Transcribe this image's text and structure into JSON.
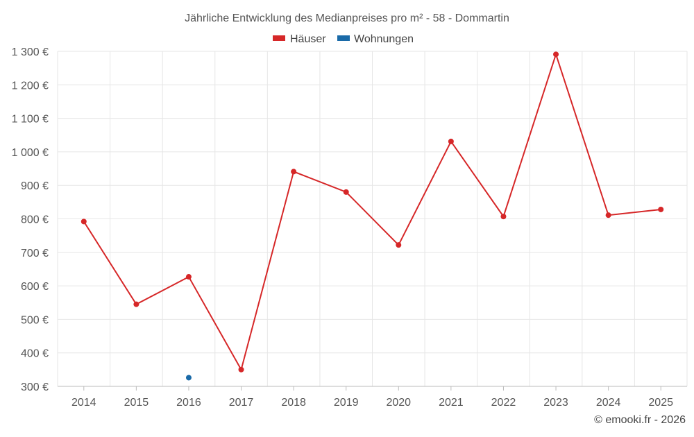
{
  "chart_data": {
    "type": "line",
    "title": "Jährliche Entwicklung des Medianpreises pro m² - 58 - Dommartin",
    "categories": [
      "2014",
      "2015",
      "2016",
      "2017",
      "2018",
      "2019",
      "2020",
      "2021",
      "2022",
      "2023",
      "2024",
      "2025"
    ],
    "series": [
      {
        "name": "Häuser",
        "color": "#d62728",
        "values": [
          792,
          545,
          627,
          350,
          941,
          880,
          722,
          1031,
          807,
          1291,
          811,
          828
        ]
      },
      {
        "name": "Wohnungen",
        "color": "#1a6aa8",
        "values": [
          null,
          null,
          326,
          null,
          null,
          null,
          null,
          null,
          null,
          null,
          null,
          null
        ]
      }
    ],
    "yticks": [
      300,
      400,
      500,
      600,
      700,
      800,
      900,
      1000,
      1100,
      1200,
      1300
    ],
    "ytick_labels": [
      "300 €",
      "400 €",
      "500 €",
      "600 €",
      "700 €",
      "800 €",
      "900 €",
      "1 000 €",
      "1 100 €",
      "1 200 €",
      "1 300 €"
    ],
    "ylim": [
      300,
      1300
    ],
    "xlabel": "",
    "ylabel": "",
    "grid": true,
    "legend_position": "top-center"
  },
  "credit": "© emooki.fr - 2026"
}
